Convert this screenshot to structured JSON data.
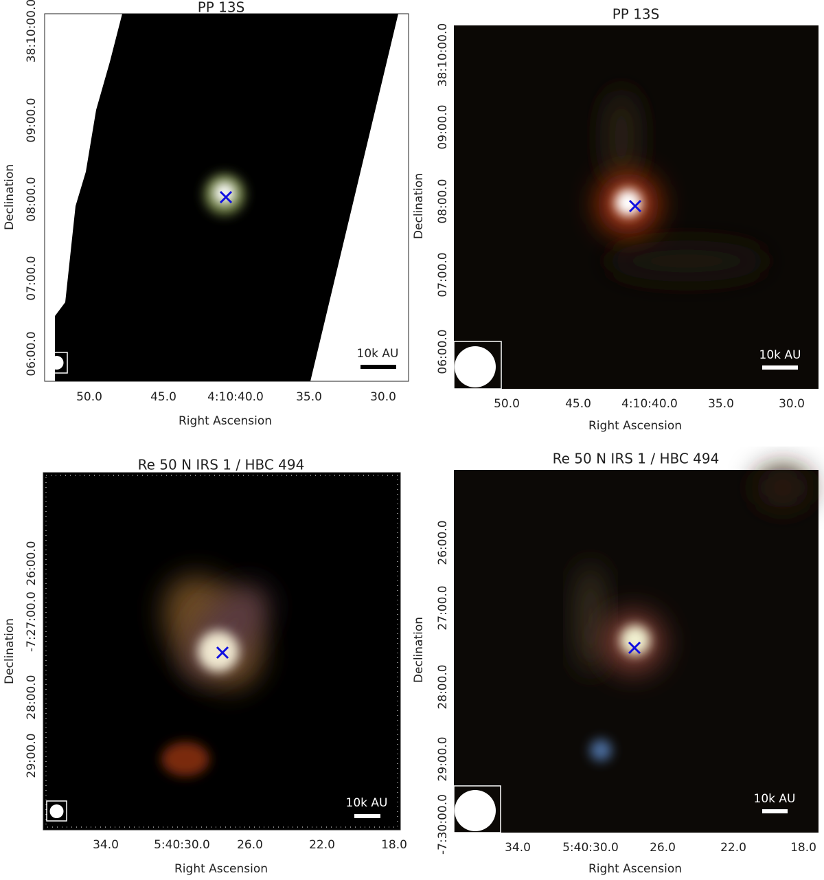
{
  "panels": [
    {
      "title": "PP 13S",
      "xlabel": "Right Ascension",
      "ylabel": "Declination",
      "xticks": [
        "50.0",
        "45.0",
        "4:10:40.0",
        "35.0",
        "30.0"
      ],
      "yticks": [
        "38:10:00.0",
        "09:00.0",
        "08:00.0",
        "07:00.0",
        "06:00.0"
      ],
      "scalebar": "10k AU"
    },
    {
      "title": "PP 13S",
      "xlabel": "Right Ascension",
      "ylabel": "Declination",
      "xticks": [
        "50.0",
        "45.0",
        "4:10:40.0",
        "35.0",
        "30.0"
      ],
      "yticks": [
        "38:10:00.0",
        "09:00.0",
        "08:00.0",
        "07:00.0",
        "06:00.0"
      ],
      "scalebar": "10k AU"
    },
    {
      "title": "Re 50 N IRS 1 / HBC 494",
      "xlabel": "Right Ascension",
      "ylabel": "Declination",
      "xticks": [
        "34.0",
        "5:40:30.0",
        "26.0",
        "22.0",
        "18.0"
      ],
      "yticks": [
        "26:00.0",
        "-7:27:00.0",
        "28:00.0",
        "29:00.0"
      ],
      "scalebar": "10k AU"
    },
    {
      "title": "Re 50 N IRS 1 / HBC 494",
      "xlabel": "Right Ascension",
      "ylabel": "Declination",
      "xticks": [
        "34.0",
        "5:40:30.0",
        "26.0",
        "22.0",
        "18.0"
      ],
      "yticks": [
        "26:00.0",
        "27:00.0",
        "28:00.0",
        "29:00.0",
        "-7:30:00.0"
      ],
      "scalebar": "10k AU"
    }
  ]
}
